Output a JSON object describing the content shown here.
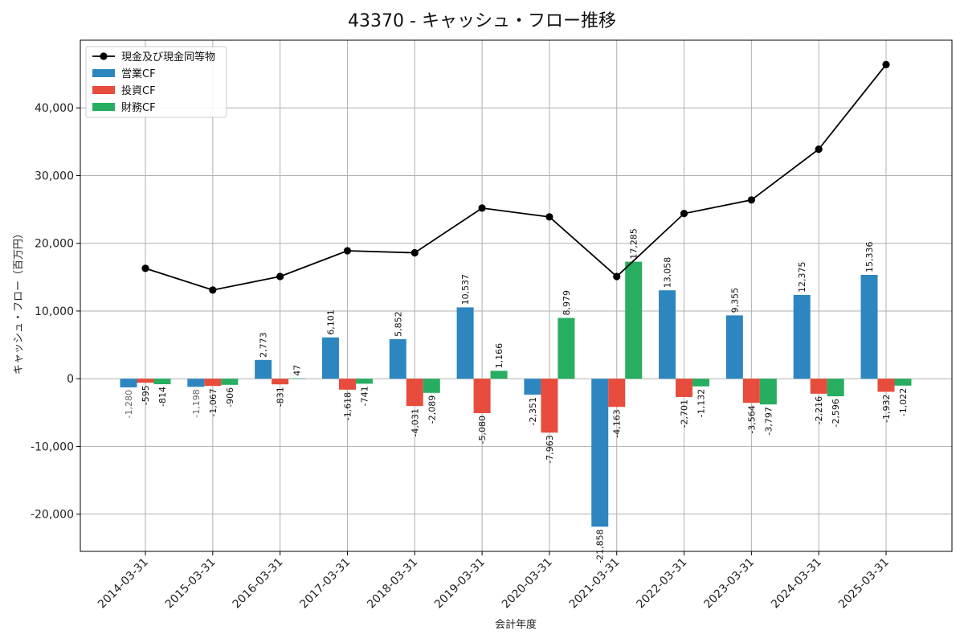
{
  "chart_data": {
    "type": "bar",
    "title": "43370 - キャッシュ・フロー推移",
    "xlabel": "会計年度",
    "ylabel": "キャッシュ・フロー（百万円）",
    "ylim": [
      -25500,
      50000
    ],
    "yticks": [
      -20000,
      -10000,
      0,
      10000,
      20000,
      30000,
      40000
    ],
    "ytick_labels": [
      "-20,000",
      "-10,000",
      "0",
      "10,000",
      "20,000",
      "30,000",
      "40,000"
    ],
    "grid": true,
    "legend_position": "top-left",
    "categories": [
      "2014-03-31",
      "2015-03-31",
      "2016-03-31",
      "2017-03-31",
      "2018-03-31",
      "2019-03-31",
      "2020-03-31",
      "2021-03-31",
      "2022-03-31",
      "2023-03-31",
      "2024-03-31",
      "2025-03-31"
    ],
    "series": [
      {
        "name": "営業CF",
        "kind": "bar",
        "color": "#2e86c1",
        "values": [
          -1280,
          -1198,
          2773,
          6101,
          5852,
          10537,
          -2351,
          -21858,
          13058,
          9355,
          12375,
          15336
        ],
        "labels": [
          "-1,280",
          "-1,198",
          "2,773",
          "6,101",
          "5,852",
          "10,537",
          "-2,351",
          "-21,858",
          "13,058",
          "9,355",
          "12,375",
          "15,336"
        ]
      },
      {
        "name": "投資CF",
        "kind": "bar",
        "color": "#e74c3c",
        "values": [
          -595,
          -1067,
          -831,
          -1618,
          -4031,
          -5080,
          -7963,
          -4163,
          -2701,
          -3564,
          -2216,
          -1932
        ],
        "labels": [
          "-595",
          "-1,067",
          "-831",
          "-1,618",
          "-4,031",
          "-5,080",
          "-7,963",
          "-4,163",
          "-2,701",
          "-3,564",
          "-2,216",
          "-1,932"
        ]
      },
      {
        "name": "財務CF",
        "kind": "bar",
        "color": "#27ae60",
        "values": [
          -814,
          -906,
          47,
          -741,
          -2089,
          1166,
          8979,
          17285,
          -1132,
          -3797,
          -2596,
          -1022
        ],
        "labels": [
          "-814",
          "-906",
          "47",
          "-741",
          "-2,089",
          "1,166",
          "8,979",
          "17,285",
          "-1,132",
          "-3,797",
          "-2,596",
          "-1,022"
        ]
      },
      {
        "name": "現金及び現金同等物",
        "kind": "line",
        "color": "#000000",
        "values": [
          16300,
          13100,
          15100,
          18900,
          18600,
          25200,
          23900,
          15100,
          24400,
          26400,
          33900,
          46400
        ]
      }
    ]
  }
}
